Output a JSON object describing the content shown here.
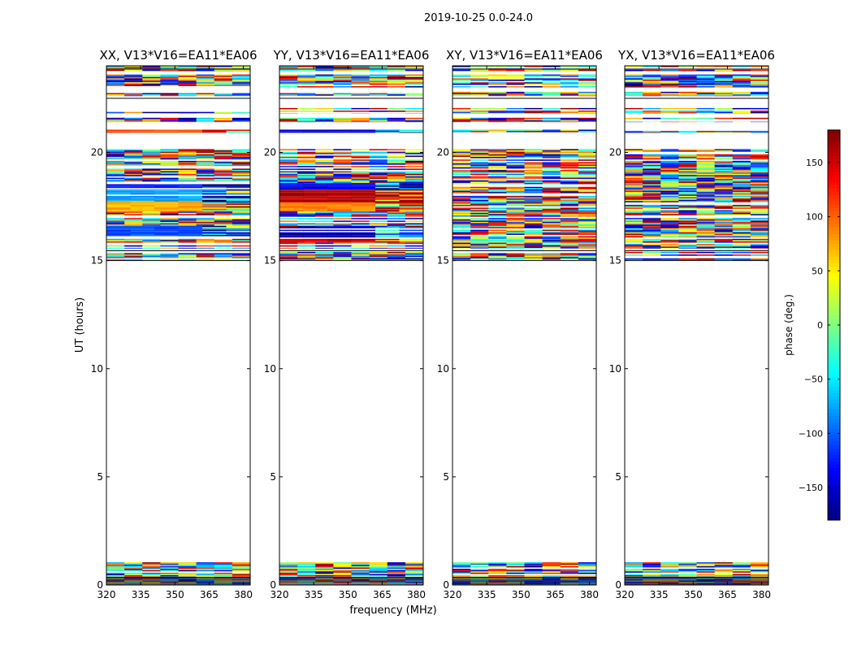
{
  "chart_data": {
    "type": "heatmap",
    "suptitle": "2019-10-25 0.0-24.0",
    "xlabel": "frequency (MHz)",
    "ylabel": "UT (hours)",
    "xlim": [
      320,
      383
    ],
    "ylim": [
      0,
      24
    ],
    "xticks": [
      320,
      335,
      350,
      365,
      380
    ],
    "yticks": [
      0,
      5,
      10,
      15,
      20
    ],
    "colorbar": {
      "label": "phase (deg.)",
      "colormap": "jet",
      "range": [
        -180,
        180
      ],
      "ticks": [
        150,
        100,
        50,
        0,
        -50,
        -100,
        -150
      ],
      "tick_labels": [
        "150",
        "100",
        "50",
        "0",
        "−50",
        "−100",
        "−150"
      ]
    },
    "panels": [
      {
        "title": "XX, V13*V16=EA11*EA06",
        "data_blocks_ut": [
          [
            0.0,
            1.05
          ],
          [
            15.0,
            15.4
          ],
          [
            15.55,
            20.15
          ],
          [
            20.9,
            21.05
          ],
          [
            21.4,
            21.6
          ],
          [
            21.8,
            22.05
          ],
          [
            22.6,
            22.8
          ],
          [
            23.0,
            23.6
          ],
          [
            23.75,
            24.0
          ]
        ],
        "coherent_blocks": [
          {
            "ut": [
              16.05,
              16.65
            ],
            "phase_deg": -110
          },
          {
            "ut": [
              17.3,
              17.75
            ],
            "phase_deg": 75
          },
          {
            "ut": [
              17.75,
              18.35
            ],
            "phase_deg": -80
          },
          {
            "ut": [
              18.35,
              18.6
            ],
            "phase_deg": -130
          },
          {
            "ut": [
              20.85,
              21.05
            ],
            "phase_deg": 110
          }
        ]
      },
      {
        "title": "YY, V13*V16=EA11*EA06",
        "data_blocks_ut": [
          [
            0.0,
            1.05
          ],
          [
            15.0,
            15.4
          ],
          [
            15.55,
            20.15
          ],
          [
            20.9,
            21.05
          ],
          [
            21.4,
            21.6
          ],
          [
            21.8,
            22.05
          ],
          [
            22.6,
            22.8
          ],
          [
            23.0,
            23.6
          ],
          [
            23.75,
            24.0
          ]
        ],
        "coherent_blocks": [
          {
            "ut": [
              15.85,
              16.1
            ],
            "phase_deg": 150
          },
          {
            "ut": [
              16.1,
              16.6
            ],
            "phase_deg": -165
          },
          {
            "ut": [
              17.3,
              17.7
            ],
            "phase_deg": 90
          },
          {
            "ut": [
              17.7,
              18.3
            ],
            "phase_deg": 160
          },
          {
            "ut": [
              18.3,
              18.6
            ],
            "phase_deg": -140
          },
          {
            "ut": [
              20.85,
              21.05
            ],
            "phase_deg": -150
          }
        ]
      },
      {
        "title": "XY, V13*V16=EA11*EA06",
        "data_blocks_ut": [
          [
            0.0,
            1.05
          ],
          [
            15.0,
            15.4
          ],
          [
            15.55,
            20.15
          ],
          [
            20.9,
            21.05
          ],
          [
            21.4,
            21.6
          ],
          [
            21.8,
            22.05
          ],
          [
            22.6,
            22.8
          ],
          [
            23.0,
            23.6
          ],
          [
            23.75,
            24.0
          ]
        ],
        "coherent_blocks": []
      },
      {
        "title": "YX, V13*V16=EA11*EA06",
        "data_blocks_ut": [
          [
            0.0,
            1.05
          ],
          [
            15.0,
            15.4
          ],
          [
            15.55,
            20.15
          ],
          [
            20.9,
            21.05
          ],
          [
            21.4,
            21.6
          ],
          [
            21.8,
            22.05
          ],
          [
            22.6,
            22.8
          ],
          [
            23.0,
            23.6
          ],
          [
            23.75,
            24.0
          ]
        ],
        "coherent_blocks": []
      }
    ]
  }
}
